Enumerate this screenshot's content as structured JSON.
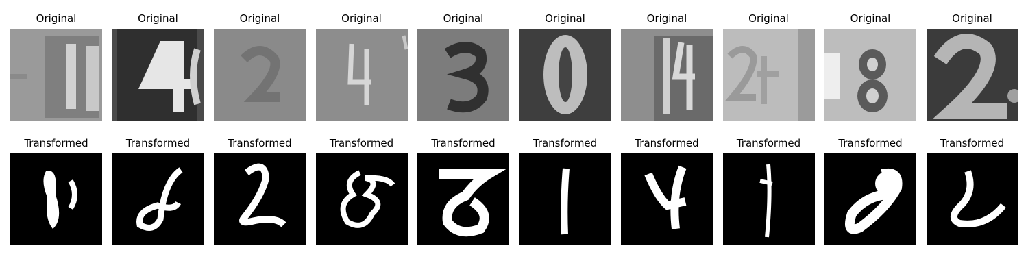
{
  "rows": [
    {
      "label": "Original",
      "images": [
        {
          "description": "blurred house number, gray background, light digits '1' partly visible"
        },
        {
          "description": "dark plate with large light digit '4' and partial digit"
        },
        {
          "description": "very blurry gray image, faint digit '2'"
        },
        {
          "description": "gray background with thin light digit '4'"
        },
        {
          "description": "gray background with dark digit '3'"
        },
        {
          "description": "dark background with large light oval digit '0'"
        },
        {
          "description": "gray background with light digits '14' partially visible"
        },
        {
          "description": "light gray background with faint digit '2' and '1'"
        },
        {
          "description": "light background with dark '8' and partial digit"
        },
        {
          "description": "dark background with large light digit '2'"
        }
      ]
    },
    {
      "label": "Transformed",
      "images": [
        {
          "description": "white handwritten-like glyph resembling '8' on black"
        },
        {
          "description": "white curly glyph on black"
        },
        {
          "description": "white glyph resembling '2' on black"
        },
        {
          "description": "white tangled glyph on black"
        },
        {
          "description": "white glyph resembling '8' with top bar on black"
        },
        {
          "description": "white vertical stroke resembling '1' on black"
        },
        {
          "description": "white glyph resembling '4' on black"
        },
        {
          "description": "thin white vertical stroke on black"
        },
        {
          "description": "white diagonal loop glyph on black"
        },
        {
          "description": "white curved glyph on black"
        }
      ]
    }
  ],
  "colors": {
    "background": "#ffffff",
    "transformed_bg": "#000000"
  }
}
